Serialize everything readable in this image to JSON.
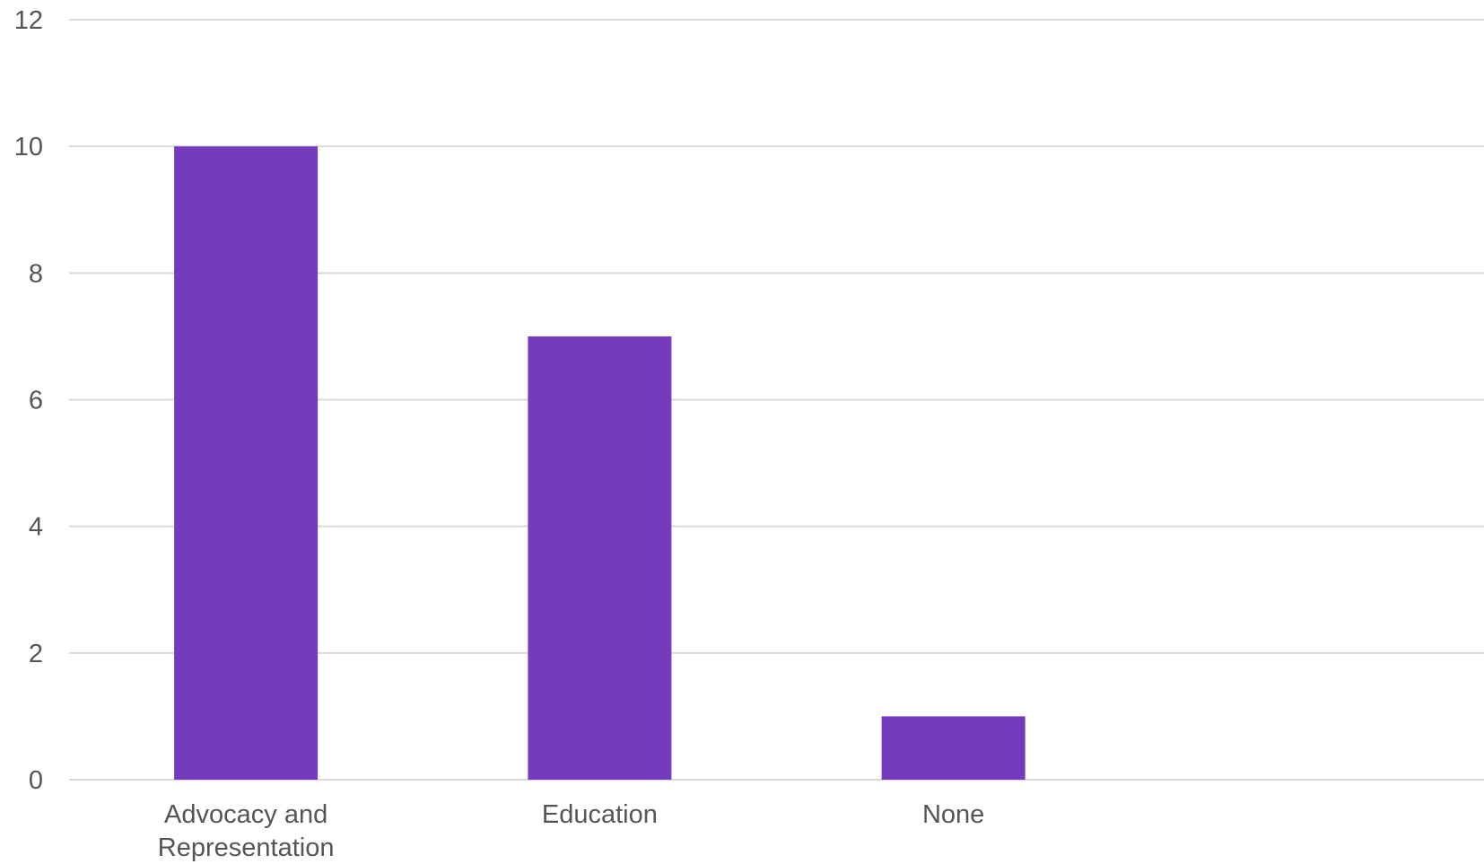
{
  "chart_data": {
    "type": "bar",
    "title": "",
    "xlabel": "",
    "ylabel": "",
    "categories": [
      [
        "Advocacy and",
        "Representation"
      ],
      [
        "Education"
      ],
      [
        "None"
      ],
      [
        ""
      ]
    ],
    "values": [
      10,
      7,
      1,
      null
    ],
    "ylim": [
      0,
      12
    ],
    "yticks": [
      "0",
      "2",
      "4",
      "6",
      "8",
      "10",
      "12"
    ],
    "grid": true,
    "legend": "none",
    "colors": {
      "bar": "#753bbd",
      "grid": "#d9d9d9",
      "text": "#555555"
    }
  }
}
